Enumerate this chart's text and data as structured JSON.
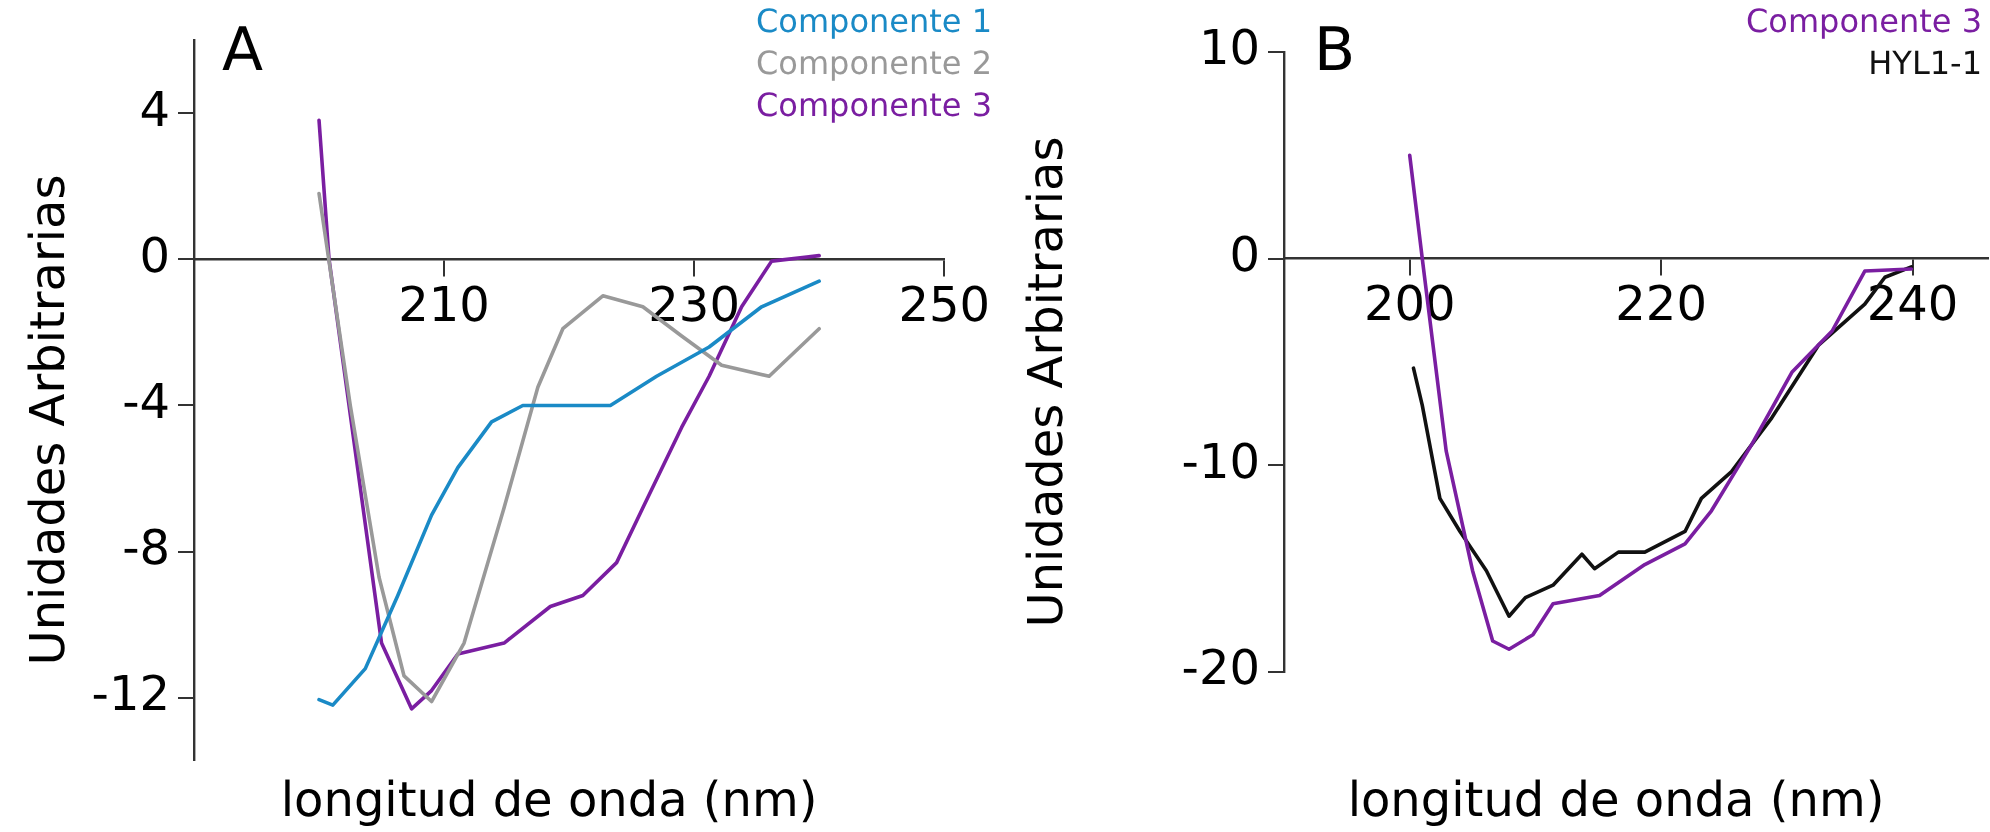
{
  "chart_data": [
    {
      "type": "line",
      "xlabel": "longitud de onda (nm)",
      "ylabel": "Unidades Arbitrarias",
      "annotations": [
        "A"
      ],
      "legend": "top right",
      "marker": "none",
      "grid": false,
      "xlim": [
        190,
        250
      ],
      "ylim": [
        -13.7,
        6
      ],
      "xticks": [
        210,
        230,
        250
      ],
      "yticks": [
        -12,
        -8,
        -4,
        0,
        4
      ],
      "series": [
        {
          "name": "Componente 1",
          "color": "#1a8ac6",
          "x": [
            200,
            201.1,
            203.7,
            206.3,
            209,
            211.1,
            213.8,
            216.3,
            223.3,
            227,
            231.2,
            235.4,
            240
          ],
          "values": [
            -12.05,
            -12.2,
            -11.2,
            -9.2,
            -7,
            -5.7,
            -4.45,
            -4,
            -4,
            -3.2,
            -2.4,
            -1.3,
            -0.6
          ]
        },
        {
          "name": "Componente 2",
          "color": "#999999",
          "x": [
            200,
            202.5,
            204.8,
            206.8,
            209,
            211.6,
            214.8,
            217.5,
            219.5,
            222.7,
            225.9,
            229,
            232.2,
            236,
            240
          ],
          "values": [
            1.8,
            -4,
            -8.7,
            -11.4,
            -12.1,
            -10.5,
            -6.8,
            -3.5,
            -1.9,
            -1,
            -1.3,
            -2.1,
            -2.9,
            -3.2,
            -1.9
          ]
        },
        {
          "name": "Componente 3",
          "color": "#7a1ea1",
          "x": [
            200,
            200.8,
            203,
            205,
            207.4,
            209,
            211.1,
            214.8,
            218.5,
            221.1,
            223.8,
            225.9,
            229,
            231.2,
            233.8,
            236.2,
            240
          ],
          "values": [
            3.8,
            0,
            -5.5,
            -10.5,
            -12.3,
            -11.8,
            -10.8,
            -10.5,
            -9.5,
            -9.2,
            -8.3,
            -6.8,
            -4.6,
            -3.2,
            -1.3,
            -0.05,
            0.1
          ]
        }
      ]
    },
    {
      "type": "line",
      "xlabel": "longitud de onda (nm)",
      "ylabel": "Unidades Arbitrarias",
      "annotations": [
        "B"
      ],
      "legend": "top right",
      "marker": "none",
      "grid": false,
      "xlim": [
        190,
        246
      ],
      "ylim": [
        -20,
        10
      ],
      "xticks": [
        200,
        220,
        240
      ],
      "yticks": [
        -20,
        -10,
        0,
        10
      ],
      "series": [
        {
          "name": "Componente 3",
          "color": "#7a1ea1",
          "x": [
            200,
            201,
            202.9,
            205,
            206.6,
            207.9,
            209.8,
            211.4,
            215.1,
            218.7,
            221.9,
            224,
            227.2,
            230.4,
            233.6,
            236.2,
            239.9
          ],
          "values": [
            5,
            0,
            -9.3,
            -15.1,
            -18.5,
            -18.9,
            -18.2,
            -16.7,
            -16.3,
            -14.8,
            -13.8,
            -12.2,
            -9,
            -5.5,
            -3.5,
            -0.6,
            -0.5
          ]
        },
        {
          "name": "HYL1-1",
          "color": "#111111",
          "x": [
            200.3,
            201,
            202.4,
            204,
            206.1,
            207.9,
            209.2,
            211.4,
            213.7,
            214.7,
            216.6,
            218.7,
            221.9,
            223.2,
            225.6,
            228.8,
            232.5,
            236.2,
            237.8,
            239.9
          ],
          "values": [
            -5.3,
            -7.1,
            -11.6,
            -13.2,
            -15.1,
            -17.3,
            -16.4,
            -15.8,
            -14.3,
            -15,
            -14.2,
            -14.2,
            -13.2,
            -11.6,
            -10.3,
            -7.7,
            -4.2,
            -2.2,
            -0.9,
            -0.4
          ]
        }
      ]
    }
  ]
}
